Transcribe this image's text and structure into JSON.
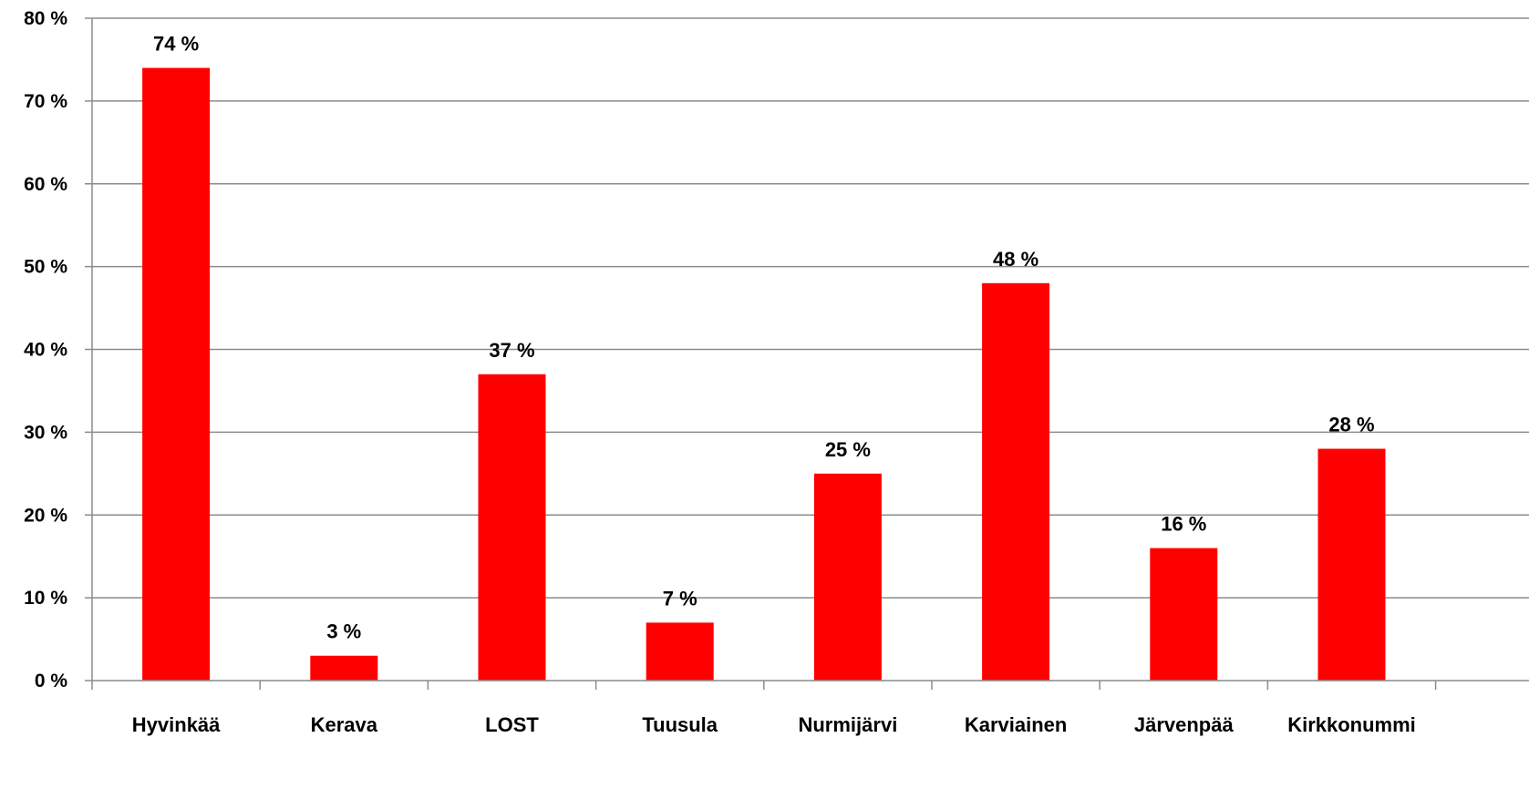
{
  "chart_data": {
    "type": "bar",
    "categories": [
      "Hyvinkää",
      "Kerava",
      "LOST",
      "Tuusula",
      "Nurmijärvi",
      "Karviainen",
      "Järvenpää",
      "Kirkkonummi"
    ],
    "values": [
      74,
      3,
      37,
      7,
      25,
      48,
      16,
      28
    ],
    "data_labels": [
      "74 %",
      "3 %",
      "37 %",
      "7 %",
      "25 %",
      "48 %",
      "16 %",
      "28 %"
    ],
    "y_ticks": [
      0,
      10,
      20,
      30,
      40,
      50,
      60,
      70,
      80
    ],
    "y_tick_labels": [
      "0 %",
      "10 %",
      "20 %",
      "30 %",
      "40 %",
      "50 %",
      "60 %",
      "70 %",
      "80 %"
    ],
    "ylim": [
      0,
      80
    ],
    "grid": true,
    "bar_color": "#ff0000",
    "title": "",
    "xlabel": "",
    "ylabel": ""
  }
}
